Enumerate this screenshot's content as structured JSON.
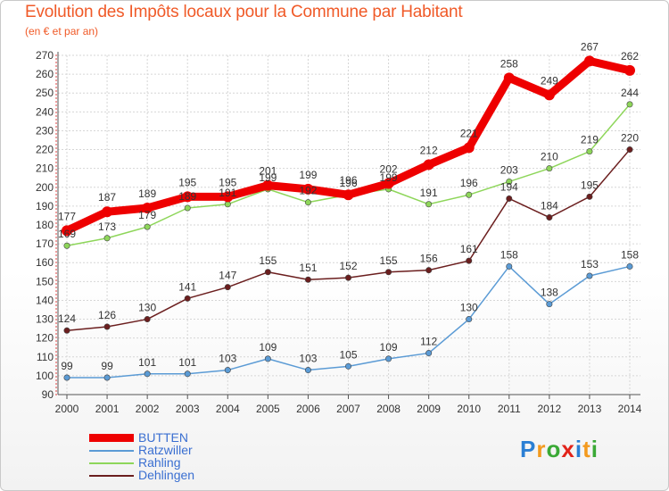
{
  "chart_data": {
    "type": "line",
    "title": "Evolution des Impôts locaux pour la Commune par Habitant",
    "subtitle": "(en € et par an)",
    "categories": [
      "2000",
      "2001",
      "2002",
      "2003",
      "2004",
      "2005",
      "2006",
      "2007",
      "2008",
      "2009",
      "2010",
      "2011",
      "2012",
      "2013",
      "2014"
    ],
    "ylim": [
      90,
      270
    ],
    "yticks": [
      90,
      100,
      110,
      120,
      130,
      140,
      150,
      160,
      170,
      180,
      190,
      200,
      210,
      220,
      230,
      240,
      250,
      260,
      270
    ],
    "grid": true,
    "series": [
      {
        "name": "BUTTEN",
        "color": "#ee0000",
        "values": [
          177,
          187,
          189,
          195,
          195,
          201,
          199,
          196,
          202,
          212,
          221,
          258,
          249,
          267,
          262
        ]
      },
      {
        "name": "Ratzwiller",
        "color": "#5b9bd5",
        "values": [
          99,
          99,
          101,
          101,
          103,
          109,
          103,
          105,
          109,
          112,
          130,
          158,
          138,
          153,
          158
        ]
      },
      {
        "name": "Rahling",
        "color": "#8ed65a",
        "values": [
          169,
          173,
          179,
          189,
          191,
          199,
          192,
          196,
          199,
          191,
          196,
          203,
          210,
          219,
          244
        ]
      },
      {
        "name": "Dehlingen",
        "color": "#6b1e1e",
        "values": [
          124,
          126,
          130,
          141,
          147,
          155,
          151,
          152,
          155,
          156,
          161,
          194,
          184,
          195,
          220
        ]
      }
    ],
    "legend_position": "bottom-left"
  },
  "logo": {
    "p": "P",
    "r": "r",
    "o": "o",
    "x": "x",
    "i1": "i",
    "t": "t",
    "i2": "i"
  }
}
